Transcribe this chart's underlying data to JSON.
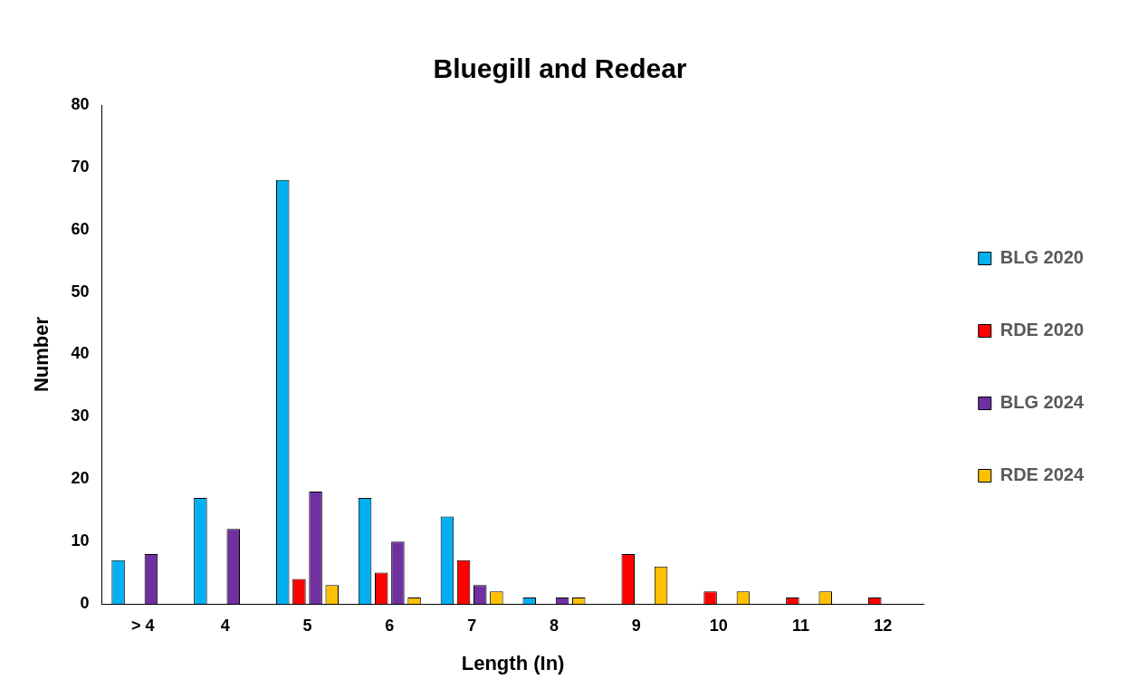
{
  "chart_data": {
    "type": "bar",
    "title": "Bluegill and Redear",
    "xlabel": "Length (In)",
    "ylabel": "Number",
    "categories": [
      "> 4",
      "4",
      "5",
      "6",
      "7",
      "8",
      "9",
      "10",
      "11",
      "12"
    ],
    "series": [
      {
        "name": "BLG 2020",
        "color": "#00b0f0",
        "values": [
          7,
          17,
          68,
          17,
          14,
          1,
          0,
          0,
          0,
          0
        ]
      },
      {
        "name": "RDE 2020",
        "color": "#ff0000",
        "values": [
          0,
          0,
          4,
          5,
          7,
          0,
          8,
          2,
          1,
          1
        ]
      },
      {
        "name": "BLG 2024",
        "color": "#7030a0",
        "values": [
          8,
          12,
          18,
          10,
          3,
          1,
          0,
          0,
          0,
          0
        ]
      },
      {
        "name": "RDE 2024",
        "color": "#ffc000",
        "values": [
          0,
          0,
          3,
          1,
          2,
          1,
          6,
          2,
          2,
          0
        ]
      }
    ],
    "ylim": [
      0,
      80
    ],
    "yticks": [
      0,
      10,
      20,
      30,
      40,
      50,
      60,
      70,
      80
    ],
    "grid": false,
    "legend": "right"
  }
}
